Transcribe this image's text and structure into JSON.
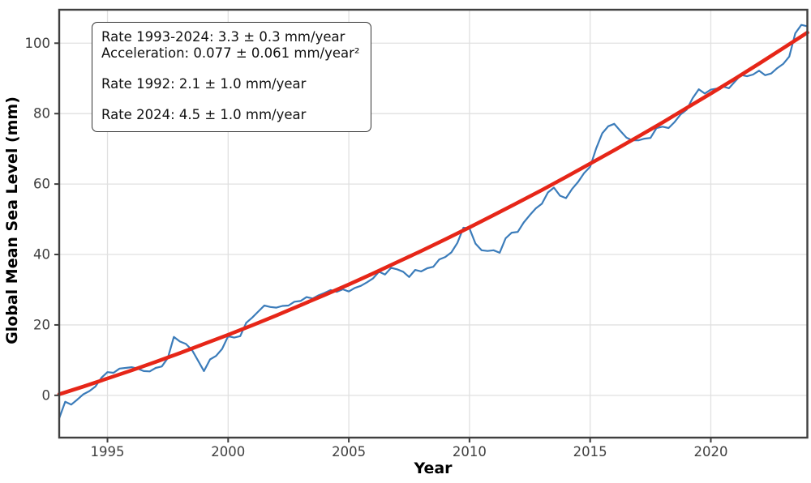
{
  "annotation": {
    "rate_range": "Rate 1993-2024: 3.3 ± 0.3 mm/year",
    "acceleration": "Acceleration: 0.077 ± 0.061 mm/year²",
    "rate_1992": "Rate 1992: 2.1 ± 1.0 mm/year",
    "rate_2024": "Rate 2024: 4.5 ± 1.0 mm/year"
  },
  "colors": {
    "observed_line": "#3b7cba",
    "trend_line": "#e62618",
    "grid": "#e0e0e0",
    "spine": "#3f3f3f",
    "tick_label": "#404040",
    "axis_label": "#000000",
    "annotation_border": "#333333",
    "background": "#ffffff"
  },
  "chart_data": {
    "type": "line",
    "title": "",
    "xlabel": "Year",
    "ylabel": "Global Mean Sea Level (mm)",
    "xlim": [
      1993,
      2024
    ],
    "ylim": [
      -12,
      109.5
    ],
    "x_ticks": [
      1995,
      2000,
      2005,
      2010,
      2015,
      2020
    ],
    "y_ticks": [
      0,
      20,
      40,
      60,
      80,
      100
    ],
    "grid": true,
    "legend": "none",
    "series": [
      {
        "name": "observed-gmsl",
        "color": "#3b7cba",
        "line_width": 2.2,
        "x": [
          1993.0,
          1993.25,
          1993.5,
          1993.75,
          1994.0,
          1994.25,
          1994.5,
          1994.75,
          1995.0,
          1995.25,
          1995.5,
          1995.75,
          1996.0,
          1996.25,
          1996.5,
          1996.75,
          1997.0,
          1997.25,
          1997.5,
          1997.75,
          1998.0,
          1998.25,
          1998.5,
          1998.75,
          1999.0,
          1999.25,
          1999.5,
          1999.75,
          2000.0,
          2000.25,
          2000.5,
          2000.75,
          2001.0,
          2001.25,
          2001.5,
          2001.75,
          2002.0,
          2002.25,
          2002.5,
          2002.75,
          2003.0,
          2003.25,
          2003.5,
          2003.75,
          2004.0,
          2004.25,
          2004.5,
          2004.75,
          2005.0,
          2005.25,
          2005.5,
          2005.75,
          2006.0,
          2006.25,
          2006.5,
          2006.75,
          2007.0,
          2007.25,
          2007.5,
          2007.75,
          2008.0,
          2008.25,
          2008.5,
          2008.75,
          2009.0,
          2009.25,
          2009.5,
          2009.75,
          2010.0,
          2010.25,
          2010.5,
          2010.75,
          2011.0,
          2011.25,
          2011.5,
          2011.75,
          2012.0,
          2012.25,
          2012.5,
          2012.75,
          2013.0,
          2013.25,
          2013.5,
          2013.75,
          2014.0,
          2014.25,
          2014.5,
          2014.75,
          2015.0,
          2015.25,
          2015.5,
          2015.75,
          2016.0,
          2016.25,
          2016.5,
          2016.75,
          2017.0,
          2017.25,
          2017.5,
          2017.75,
          2018.0,
          2018.25,
          2018.5,
          2018.75,
          2019.0,
          2019.25,
          2019.5,
          2019.75,
          2020.0,
          2020.25,
          2020.5,
          2020.75,
          2021.0,
          2021.25,
          2021.5,
          2021.75,
          2022.0,
          2022.25,
          2022.5,
          2022.75,
          2023.0,
          2023.25,
          2023.5,
          2023.75,
          2024.0
        ],
        "y": [
          -6.5,
          -1.8,
          -2.6,
          -1.2,
          0.3,
          1.2,
          2.5,
          5.0,
          6.6,
          6.4,
          7.6,
          7.8,
          8.0,
          7.6,
          6.9,
          6.8,
          7.8,
          8.2,
          10.6,
          16.6,
          15.3,
          14.6,
          12.9,
          9.9,
          6.9,
          10.2,
          11.2,
          13.2,
          16.8,
          16.4,
          16.8,
          20.6,
          22.1,
          23.8,
          25.5,
          25.1,
          24.9,
          25.4,
          25.5,
          26.6,
          26.8,
          27.9,
          27.5,
          28.4,
          29.1,
          29.9,
          29.4,
          30.1,
          29.5,
          30.5,
          31.1,
          32.1,
          33.2,
          35.1,
          34.3,
          36.2,
          35.8,
          35.1,
          33.6,
          35.6,
          35.2,
          36.1,
          36.5,
          38.6,
          39.3,
          40.6,
          43.3,
          47.6,
          47.4,
          43.1,
          41.2,
          41.0,
          41.2,
          40.5,
          44.6,
          46.2,
          46.4,
          49.1,
          51.2,
          53.1,
          54.4,
          57.6,
          59.0,
          56.7,
          56.0,
          58.6,
          60.6,
          63.1,
          64.9,
          70.1,
          74.4,
          76.4,
          77.1,
          75.1,
          73.2,
          72.4,
          72.4,
          72.9,
          73.1,
          75.9,
          76.3,
          75.9,
          77.6,
          79.8,
          81.1,
          84.4,
          86.9,
          85.7,
          86.8,
          87.1,
          87.7,
          87.2,
          89.1,
          91.0,
          90.6,
          91.1,
          92.2,
          90.9,
          91.4,
          92.9,
          94.1,
          96.2,
          102.8,
          105.2,
          104.8
        ]
      },
      {
        "name": "quadratic-trend",
        "color": "#e62618",
        "line_width": 4.6,
        "x": [
          1993,
          1994,
          1995,
          1996,
          1997,
          1998,
          1999,
          2000,
          2001,
          2002,
          2003,
          2004,
          2005,
          2006,
          2007,
          2008,
          2009,
          2010,
          2011,
          2012,
          2013,
          2014,
          2015,
          2016,
          2017,
          2018,
          2019,
          2020,
          2021,
          2022,
          2023,
          2024
        ],
        "y": [
          0.3,
          2.5,
          4.8,
          7.1,
          9.5,
          12.0,
          14.6,
          17.2,
          19.9,
          22.7,
          25.6,
          28.5,
          31.5,
          34.6,
          37.8,
          41.0,
          44.3,
          47.7,
          51.2,
          54.7,
          58.3,
          62.0,
          65.8,
          69.6,
          73.5,
          77.5,
          81.6,
          85.7,
          89.9,
          94.2,
          98.6,
          103.0
        ]
      }
    ],
    "stats": {
      "rate_1993_2024_mm_per_year": 3.3,
      "rate_1993_2024_uncertainty": 0.3,
      "acceleration_mm_per_year2": 0.077,
      "acceleration_uncertainty": 0.061,
      "rate_1992_mm_per_year": 2.1,
      "rate_1992_uncertainty": 1.0,
      "rate_2024_mm_per_year": 4.5,
      "rate_2024_uncertainty": 1.0
    }
  }
}
